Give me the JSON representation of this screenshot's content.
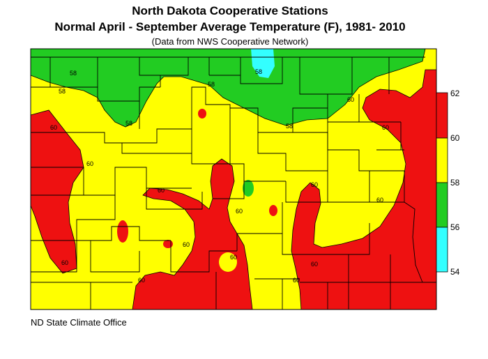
{
  "title": "North Dakota Cooperative Stations",
  "subtitle": "Normal April - September Average Temperature (F), 1981- 2010",
  "source_note": "(Data from NWS Cooperative Network)",
  "credit": "ND State Climate Office",
  "colors": {
    "band_54_56": "#33ffff",
    "band_56_58": "#22cc22",
    "band_58_60": "#ffff00",
    "band_60_62": "#ee1111"
  },
  "legend": {
    "labels": [
      "62",
      "60",
      "58",
      "56",
      "54"
    ]
  },
  "contour_labels": [
    "58",
    "58",
    "58",
    "58",
    "58",
    "58",
    "60",
    "60",
    "60",
    "60",
    "60",
    "60",
    "60",
    "60",
    "60",
    "60",
    "60",
    "60",
    "60",
    "60"
  ]
}
